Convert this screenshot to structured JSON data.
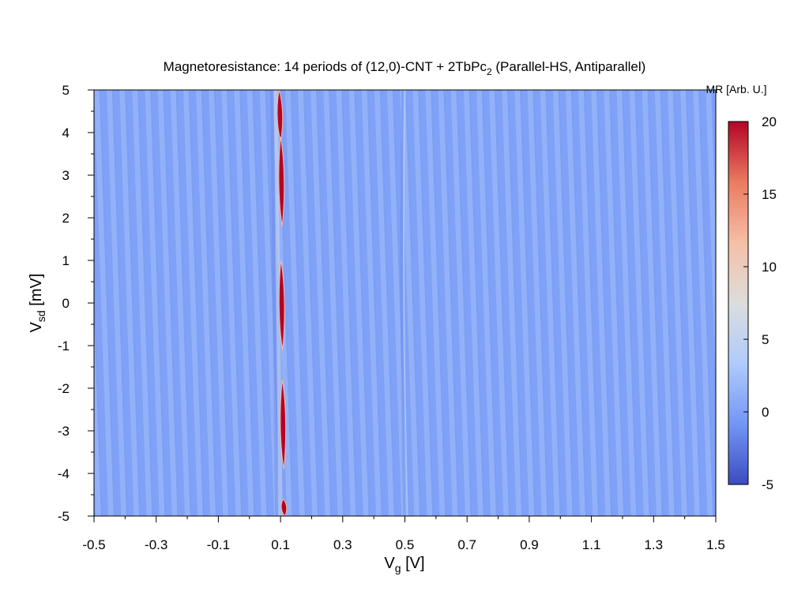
{
  "chart_data": {
    "type": "heatmap",
    "title": {
      "main": "Magnetoresistance: 14 periods of (12,0)-CNT + 2TbPc",
      "sub": "2",
      "tail": " (Parallel-HS, Antiparallel)"
    },
    "xlabel": {
      "main": "V",
      "sub": "g",
      "tail": "  [V]"
    },
    "ylabel": {
      "main": "V",
      "sub": "sd",
      "tail": " [mV]"
    },
    "colorbar_label": "MR [Arb. U.]",
    "xlim": [
      -0.5,
      1.5
    ],
    "ylim": [
      -5,
      5
    ],
    "clim": [
      -5,
      20
    ],
    "x_ticks": [
      "-0.5",
      "-0.3",
      "-0.1",
      "0.1",
      "0.3",
      "0.5",
      "0.7",
      "0.9",
      "1.1",
      "1.3",
      "1.5"
    ],
    "y_ticks": [
      "5",
      "4",
      "3",
      "2",
      "1",
      "0",
      "-1",
      "-2",
      "-3",
      "-4",
      "-5"
    ],
    "colorbar_ticks": [
      "20",
      "15",
      "10",
      "5",
      "0",
      "-5"
    ],
    "colormap": [
      "#3b4cc0",
      "#7396f5",
      "#b0cbfc",
      "#dcdddd",
      "#f6bfa6",
      "#ea7b60",
      "#b40426"
    ],
    "background_value": 0,
    "features": {
      "stripe_slope_V_per_mV": -0.0046,
      "stripe_spacing_V": 0.041,
      "stripe_value_range": [
        -0.8,
        1.8
      ],
      "high_mr_lobes": [
        {
          "vsd_range": [
            3.8,
            5.0
          ],
          "vg_center": 0.098,
          "value": 20
        },
        {
          "vsd_range": [
            1.8,
            3.9
          ],
          "vg_center": 0.103,
          "value": 20
        },
        {
          "vsd_range": [
            -1.1,
            1.0
          ],
          "vg_center": 0.104,
          "value": 20
        },
        {
          "vsd_range": [
            -3.9,
            -1.8
          ],
          "vg_center": 0.108,
          "value": 20
        },
        {
          "vsd_range": [
            -5.0,
            -4.6
          ],
          "vg_center": 0.111,
          "value": 20
        }
      ],
      "secondary_resonance_vg": 0.505
    }
  }
}
